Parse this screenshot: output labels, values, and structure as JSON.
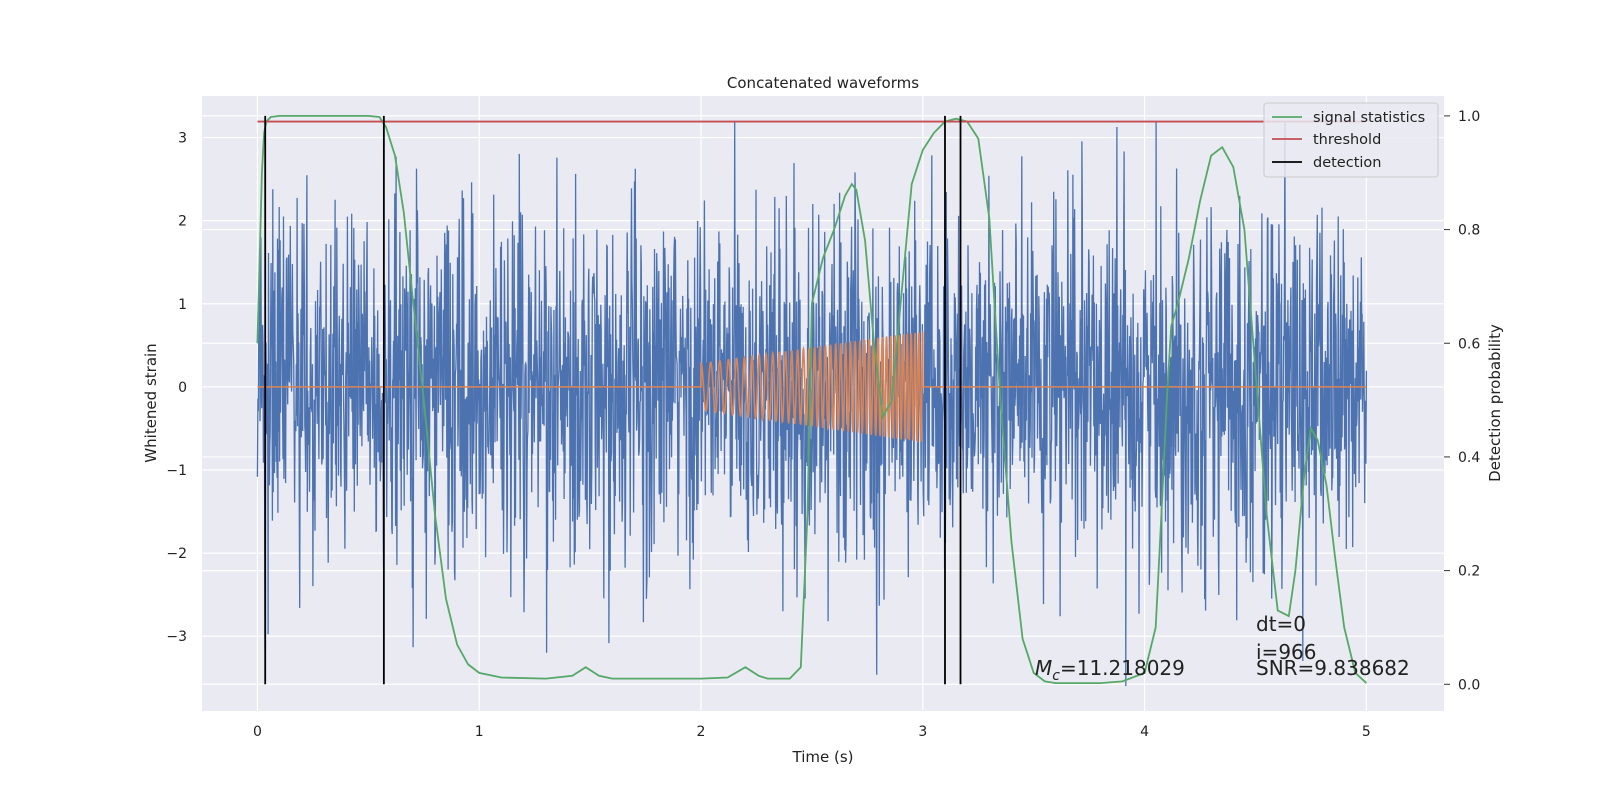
{
  "chart_data": {
    "type": "line",
    "title": "Concatenated waveforms",
    "xlabel": "Time (s)",
    "ylabel": "Whitened strain",
    "y2label": "Detection probability",
    "xlim": [
      -0.25,
      5.35
    ],
    "ylim": [
      -3.9,
      3.5
    ],
    "y2lim": [
      -0.047,
      1.035
    ],
    "xticks": [
      0,
      1,
      2,
      3,
      4,
      5
    ],
    "yticks": [
      -3,
      -2,
      -1,
      0,
      1,
      2,
      3
    ],
    "y2ticks": [
      0.0,
      0.2,
      0.4,
      0.6,
      0.8,
      1.0
    ],
    "grid": true,
    "legend_position": "top-right",
    "legend": [
      "signal statistics",
      "threshold",
      "detection"
    ],
    "series": [
      {
        "kind": "whitened-noise-strain",
        "axis": "left",
        "color": "#4c72b0",
        "x_range": [
          0,
          5
        ],
        "approx_range": [
          -3.6,
          3.2
        ]
      },
      {
        "kind": "injected-chirp-template",
        "axis": "left",
        "color": "#dd8452",
        "x_range": [
          2.0,
          3.0
        ],
        "amplitude_start": 0.28,
        "amplitude_end": 0.67,
        "baseline": 0
      },
      {
        "name": "signal statistics",
        "axis": "right",
        "color": "#55a868",
        "x": [
          0.0,
          0.01,
          0.02,
          0.03,
          0.04,
          0.06,
          0.1,
          0.15,
          0.25,
          0.4,
          0.5,
          0.55,
          0.58,
          0.62,
          0.66,
          0.7,
          0.75,
          0.8,
          0.85,
          0.9,
          0.95,
          1.0,
          1.1,
          1.3,
          1.42,
          1.48,
          1.54,
          1.6,
          1.8,
          2.0,
          2.12,
          2.2,
          2.26,
          2.3,
          2.4,
          2.45,
          2.48,
          2.5,
          2.55,
          2.6,
          2.65,
          2.68,
          2.7,
          2.74,
          2.78,
          2.82,
          2.86,
          2.9,
          2.95,
          3.0,
          3.05,
          3.1,
          3.15,
          3.2,
          3.25,
          3.3,
          3.35,
          3.4,
          3.45,
          3.5,
          3.55,
          3.6,
          3.7,
          3.8,
          3.9,
          4.0,
          4.05,
          4.08,
          4.1,
          4.12,
          4.15,
          4.2,
          4.25,
          4.3,
          4.35,
          4.4,
          4.45,
          4.5,
          4.55,
          4.6,
          4.65,
          4.68,
          4.72,
          4.75,
          4.78,
          4.82,
          4.86,
          4.9,
          4.95,
          5.0
        ],
        "values": [
          0.6,
          0.75,
          0.9,
          0.97,
          0.99,
          0.998,
          1.0,
          1.0,
          1.0,
          1.0,
          1.0,
          0.998,
          0.98,
          0.93,
          0.83,
          0.68,
          0.5,
          0.3,
          0.15,
          0.07,
          0.035,
          0.02,
          0.012,
          0.01,
          0.015,
          0.03,
          0.015,
          0.01,
          0.01,
          0.01,
          0.012,
          0.03,
          0.015,
          0.01,
          0.01,
          0.03,
          0.3,
          0.67,
          0.75,
          0.8,
          0.86,
          0.88,
          0.87,
          0.78,
          0.6,
          0.47,
          0.5,
          0.67,
          0.88,
          0.94,
          0.97,
          0.99,
          0.995,
          0.99,
          0.96,
          0.82,
          0.5,
          0.25,
          0.08,
          0.02,
          0.005,
          0.002,
          0.002,
          0.002,
          0.005,
          0.02,
          0.1,
          0.33,
          0.5,
          0.63,
          0.67,
          0.75,
          0.85,
          0.93,
          0.945,
          0.91,
          0.8,
          0.55,
          0.3,
          0.13,
          0.12,
          0.2,
          0.37,
          0.45,
          0.43,
          0.35,
          0.22,
          0.1,
          0.02,
          0.002
        ]
      },
      {
        "name": "threshold",
        "axis": "right",
        "color": "#c44e52",
        "x": [
          0,
          5
        ],
        "values": [
          0.99,
          0.99
        ]
      }
    ],
    "detections": {
      "color": "#000000",
      "x": [
        0.035,
        0.57,
        3.1,
        3.17
      ]
    },
    "annotations": {
      "mc_symbol": "M",
      "mc_subscript": "c",
      "mc_value": "=11.218029",
      "dt": "dt=0",
      "i": "i=966",
      "snr": "SNR=9.838682"
    }
  }
}
